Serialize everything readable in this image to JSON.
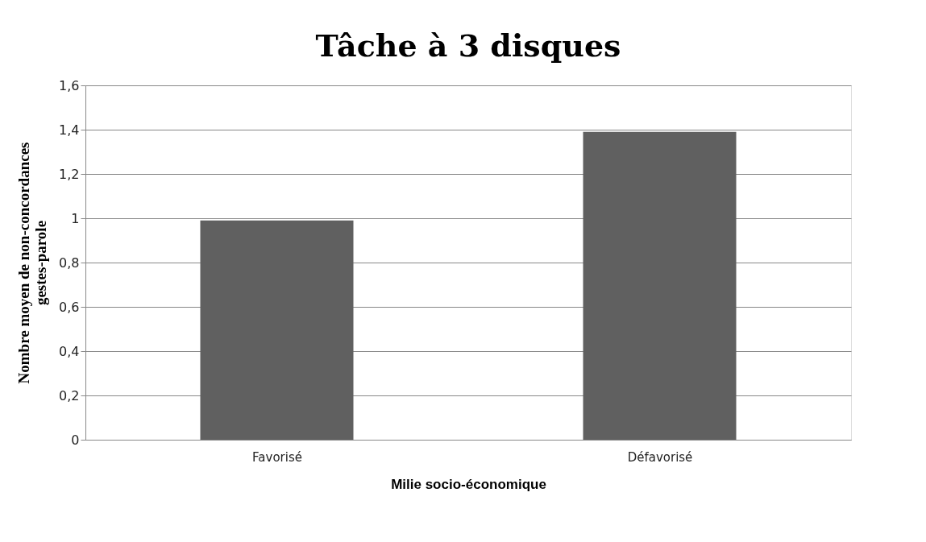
{
  "chart_data": {
    "type": "bar",
    "title": "Tâche à 3 disques",
    "xlabel": "Milie socio-économique",
    "ylabel": "Nombre moyen de non-concordances gestes-parole",
    "categories": [
      "Favorisé",
      "Défavorisé"
    ],
    "values": [
      0.99,
      1.39
    ],
    "color": "#606060",
    "ylim": [
      0,
      1.6
    ],
    "yticks": [
      0,
      {
        "value": 0.2,
        "label": "0,2"
      },
      {
        "value": 0.4,
        "label": "0,4"
      },
      {
        "value": 0.6,
        "label": "0,6"
      },
      {
        "value": 0.8,
        "label": "0,8"
      },
      1,
      {
        "value": 1.2,
        "label": "1,2"
      },
      {
        "value": 1.4,
        "label": "1,4"
      },
      {
        "value": 1.6,
        "label": "1,6"
      }
    ],
    "grid": "y"
  }
}
